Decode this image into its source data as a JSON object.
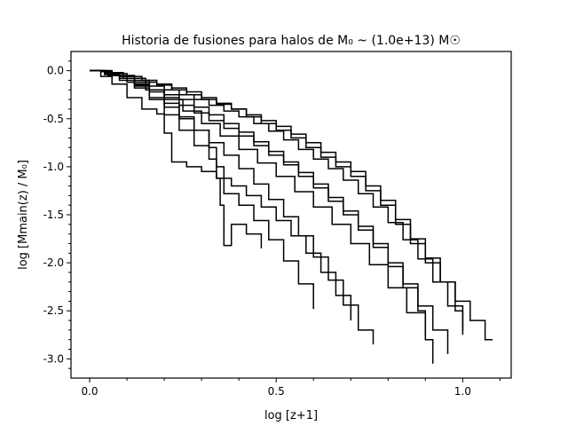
{
  "chart_data": {
    "type": "line",
    "title": "Historia de fusiones para halos de M₀ ~ (1.0e+13) M☉",
    "xlabel": "log [z+1]",
    "ylabel": "log [Mmain(z) / M₀]",
    "xlim": [
      -0.05,
      1.13
    ],
    "ylim": [
      -3.2,
      0.2
    ],
    "xticks": [
      {
        "value": 0.0,
        "label": "0.0"
      },
      {
        "value": 0.5,
        "label": "0.5"
      },
      {
        "value": 1.0,
        "label": "1.0"
      }
    ],
    "yticks": [
      {
        "value": 0.0,
        "label": "0.0"
      },
      {
        "value": -0.5,
        "label": "-0.5"
      },
      {
        "value": -1.0,
        "label": "-1.0"
      },
      {
        "value": -1.5,
        "label": "-1.5"
      },
      {
        "value": -2.0,
        "label": "-2.0"
      },
      {
        "value": -2.5,
        "label": "-2.5"
      },
      {
        "value": -3.0,
        "label": "-3.0"
      }
    ],
    "grid": false,
    "line_color": "#000000",
    "step": true,
    "series": [
      {
        "x": [
          0.0,
          0.03,
          0.06,
          0.09,
          0.12,
          0.15,
          0.18,
          0.22,
          0.26,
          0.3,
          0.34,
          0.38,
          0.42,
          0.46,
          0.5,
          0.54,
          0.58,
          0.62,
          0.66,
          0.7,
          0.74,
          0.78,
          0.82,
          0.86,
          0.9,
          0.94,
          0.98,
          1.02,
          1.06,
          1.08
        ],
        "y": [
          0.0,
          0.0,
          -0.02,
          -0.05,
          -0.08,
          -0.12,
          -0.15,
          -0.2,
          -0.25,
          -0.3,
          -0.35,
          -0.4,
          -0.48,
          -0.55,
          -0.62,
          -0.7,
          -0.8,
          -0.9,
          -1.0,
          -1.1,
          -1.25,
          -1.4,
          -1.6,
          -1.8,
          -2.0,
          -2.2,
          -2.4,
          -2.6,
          -2.8,
          -2.8
        ]
      },
      {
        "x": [
          0.0,
          0.03,
          0.06,
          0.1,
          0.14,
          0.18,
          0.22,
          0.26,
          0.3,
          0.34,
          0.38,
          0.42,
          0.46,
          0.5,
          0.54,
          0.58,
          0.62,
          0.66,
          0.7,
          0.74,
          0.78,
          0.82,
          0.86,
          0.9,
          0.94,
          0.98,
          1.0
        ],
        "y": [
          0.0,
          -0.01,
          -0.03,
          -0.06,
          -0.1,
          -0.14,
          -0.18,
          -0.22,
          -0.28,
          -0.34,
          -0.4,
          -0.46,
          -0.52,
          -0.58,
          -0.66,
          -0.75,
          -0.85,
          -0.95,
          -1.05,
          -1.2,
          -1.35,
          -1.55,
          -1.75,
          -1.95,
          -2.2,
          -2.5,
          -2.75
        ]
      },
      {
        "x": [
          0.0,
          0.04,
          0.08,
          0.12,
          0.16,
          0.2,
          0.24,
          0.28,
          0.32,
          0.36,
          0.4,
          0.44,
          0.48,
          0.52,
          0.56,
          0.6,
          0.64,
          0.68,
          0.72,
          0.76,
          0.8,
          0.84,
          0.88,
          0.92,
          0.96,
          1.0
        ],
        "y": [
          0.0,
          -0.02,
          -0.05,
          -0.1,
          -0.16,
          -0.2,
          -0.25,
          -0.3,
          -0.36,
          -0.42,
          -0.48,
          -0.55,
          -0.63,
          -0.72,
          -0.82,
          -0.92,
          -1.02,
          -1.14,
          -1.28,
          -1.42,
          -1.58,
          -1.76,
          -1.96,
          -2.2,
          -2.45,
          -2.7
        ]
      },
      {
        "x": [
          0.0,
          0.03,
          0.06,
          0.09,
          0.12,
          0.16,
          0.2,
          0.24,
          0.28,
          0.32,
          0.36,
          0.4,
          0.44,
          0.48,
          0.52,
          0.56,
          0.6,
          0.64,
          0.68,
          0.72,
          0.76,
          0.8,
          0.84,
          0.88,
          0.92,
          0.96
        ],
        "y": [
          0.0,
          0.0,
          -0.03,
          -0.08,
          -0.15,
          -0.2,
          -0.25,
          -0.3,
          -0.38,
          -0.46,
          -0.55,
          -0.64,
          -0.74,
          -0.84,
          -0.95,
          -1.06,
          -1.18,
          -1.32,
          -1.46,
          -1.62,
          -1.8,
          -2.0,
          -2.22,
          -2.45,
          -2.7,
          -2.95
        ]
      },
      {
        "x": [
          0.0,
          0.04,
          0.08,
          0.12,
          0.16,
          0.2,
          0.24,
          0.28,
          0.32,
          0.36,
          0.4,
          0.44,
          0.48,
          0.52,
          0.56,
          0.6,
          0.64,
          0.68,
          0.72,
          0.76,
          0.8,
          0.84,
          0.88,
          0.9
        ],
        "y": [
          0.0,
          -0.03,
          -0.08,
          -0.14,
          -0.2,
          -0.28,
          -0.36,
          -0.44,
          -0.52,
          -0.6,
          -0.68,
          -0.78,
          -0.88,
          -0.98,
          -1.1,
          -1.22,
          -1.36,
          -1.5,
          -1.66,
          -1.84,
          -2.04,
          -2.26,
          -2.5,
          -2.75
        ]
      },
      {
        "x": [
          0.0,
          0.05,
          0.1,
          0.15,
          0.2,
          0.25,
          0.3,
          0.35,
          0.4,
          0.45,
          0.5,
          0.55,
          0.6,
          0.65,
          0.7,
          0.75,
          0.8,
          0.85,
          0.9,
          0.92
        ],
        "y": [
          0.0,
          -0.05,
          -0.12,
          -0.2,
          -0.3,
          -0.42,
          -0.55,
          -0.68,
          -0.82,
          -0.96,
          -1.1,
          -1.26,
          -1.42,
          -1.6,
          -1.8,
          -2.02,
          -2.26,
          -2.52,
          -2.8,
          -3.05
        ]
      },
      {
        "x": [
          0.0,
          0.04,
          0.08,
          0.12,
          0.16,
          0.2,
          0.24,
          0.28,
          0.32,
          0.36,
          0.4,
          0.44,
          0.48,
          0.52,
          0.56,
          0.6,
          0.64,
          0.68,
          0.72,
          0.76
        ],
        "y": [
          0.0,
          -0.04,
          -0.1,
          -0.18,
          -0.28,
          -0.38,
          -0.5,
          -0.62,
          -0.75,
          -0.88,
          -1.02,
          -1.18,
          -1.34,
          -1.52,
          -1.72,
          -1.94,
          -2.18,
          -2.44,
          -2.7,
          -2.85
        ]
      },
      {
        "x": [
          0.0,
          0.03,
          0.06,
          0.1,
          0.14,
          0.18,
          0.2,
          0.22,
          0.26,
          0.3,
          0.34,
          0.38,
          0.42,
          0.46,
          0.5,
          0.54,
          0.58,
          0.62,
          0.66,
          0.7
        ],
        "y": [
          0.0,
          -0.06,
          -0.14,
          -0.28,
          -0.4,
          -0.45,
          -0.65,
          -0.95,
          -1.0,
          -1.05,
          -1.12,
          -1.2,
          -1.3,
          -1.42,
          -1.56,
          -1.72,
          -1.9,
          -2.1,
          -2.34,
          -2.6
        ]
      },
      {
        "x": [
          0.0,
          0.04,
          0.08,
          0.12,
          0.16,
          0.2,
          0.24,
          0.28,
          0.32,
          0.34,
          0.36,
          0.4,
          0.44,
          0.48,
          0.52,
          0.56,
          0.6
        ],
        "y": [
          0.0,
          -0.02,
          -0.06,
          -0.12,
          -0.22,
          -0.34,
          -0.48,
          -0.62,
          -0.8,
          -1.0,
          -1.28,
          -1.4,
          -1.56,
          -1.76,
          -1.98,
          -2.22,
          -2.48
        ]
      },
      {
        "x": [
          0.0,
          0.04,
          0.08,
          0.12,
          0.16,
          0.2,
          0.24,
          0.28,
          0.32,
          0.34,
          0.35,
          0.36,
          0.38,
          0.42,
          0.46
        ],
        "y": [
          0.0,
          -0.03,
          -0.08,
          -0.16,
          -0.3,
          -0.46,
          -0.62,
          -0.78,
          -0.92,
          -1.12,
          -1.4,
          -1.82,
          -1.6,
          -1.7,
          -1.85
        ]
      }
    ]
  }
}
